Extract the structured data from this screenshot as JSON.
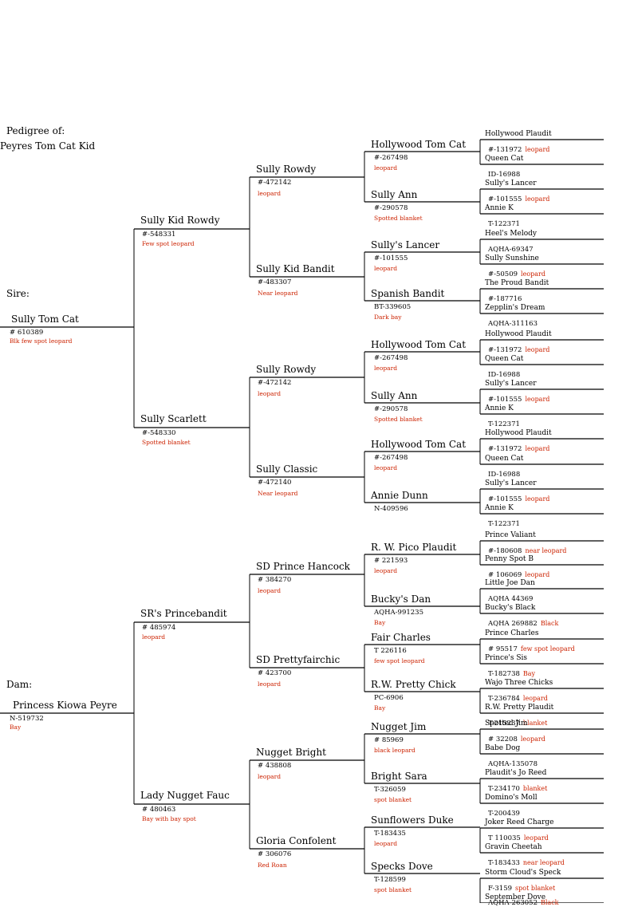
{
  "header": {
    "line1": "Pedigree of:",
    "line2": "Peyres Tom Cat Kid"
  },
  "labels": {
    "sire": "Sire:",
    "dam": "Dam:"
  },
  "g1": {
    "sire": {
      "name": "Sully Tom Cat",
      "reg": "# 610389",
      "color": "Blk few spot leopard"
    },
    "dam": {
      "name": "Princess Kiowa Peyre",
      "reg": "N-519732",
      "color": "Bay"
    }
  },
  "g2": [
    {
      "name": "Sully Kid Rowdy",
      "reg": "#-548331",
      "color": "Few spot leopard"
    },
    {
      "name": "Sully Scarlett",
      "reg": "#-548330",
      "color": "Spotted blanket"
    },
    {
      "name": "SR's Princebandit",
      "reg": "# 485974",
      "color": "leopard"
    },
    {
      "name": "Lady Nugget Fauc",
      "reg": "# 480463",
      "color": "Bay with bay spot"
    }
  ],
  "g3": [
    {
      "name": "Sully Rowdy",
      "reg": "#-472142",
      "color": "leopard"
    },
    {
      "name": "Sully Kid Bandit",
      "reg": "#-483307",
      "color": "Near leopard"
    },
    {
      "name": "Sully Rowdy",
      "reg": "#-472142",
      "color": "leopard"
    },
    {
      "name": "Sully Classic",
      "reg": "#-472140",
      "color": "Near leopard"
    },
    {
      "name": "SD Prince Hancock",
      "reg": "# 384270",
      "color": "leopard"
    },
    {
      "name": "SD Prettyfairchic",
      "reg": "# 423700",
      "color": "leopard"
    },
    {
      "name": "Nugget Bright",
      "reg": "# 438808",
      "color": "leopard"
    },
    {
      "name": "Gloria Confolent",
      "reg": "# 306076",
      "color": "Red Roan"
    }
  ],
  "g4": [
    {
      "name": "Hollywood Tom Cat",
      "reg": "#-267498",
      "color": "leopard"
    },
    {
      "name": "Sully Ann",
      "reg": "#-290578",
      "color": "Spotted blanket"
    },
    {
      "name": "Sully's Lancer",
      "reg": "#-101555",
      "color": "leopard"
    },
    {
      "name": "Spanish Bandit",
      "reg": "BT-339605",
      "color": "Dark bay"
    },
    {
      "name": "Hollywood Tom Cat",
      "reg": "#-267498",
      "color": "leopard"
    },
    {
      "name": "Sully Ann",
      "reg": "#-290578",
      "color": "Spotted blanket"
    },
    {
      "name": "Hollywood Tom Cat",
      "reg": "#-267498",
      "color": "leopard"
    },
    {
      "name": "Annie Dunn",
      "reg": "N-409596",
      "color": ""
    },
    {
      "name": "R. W. Pico Plaudit",
      "reg": "# 221593",
      "color": "leopard"
    },
    {
      "name": "Bucky's Dan",
      "reg": "AQHA-991235",
      "color": "Bay"
    },
    {
      "name": "Fair Charles",
      "reg": "T 226116",
      "color": "few spot leopard"
    },
    {
      "name": "R.W. Pretty Chick",
      "reg": "PC-6906",
      "color": "Bay"
    },
    {
      "name": "Nugget Jim",
      "reg": "# 85969",
      "color": "black leopard"
    },
    {
      "name": "Bright Sara",
      "reg": "T-326059",
      "color": "spot blanket"
    },
    {
      "name": "Sunflowers Duke",
      "reg": "T-183435",
      "color": "leopard"
    },
    {
      "name": "Specks Dove",
      "reg": "T-128599",
      "color": "spot blanket"
    }
  ],
  "g5": [
    {
      "name": "Hollywood Plaudit",
      "reg": "#-131972",
      "color": "leopard"
    },
    {
      "name": "Queen Cat",
      "reg": "ID-16988",
      "color": ""
    },
    {
      "name": "Sully's Lancer",
      "reg": "#-101555",
      "color": "leopard"
    },
    {
      "name": "Annie K",
      "reg": "T-122371",
      "color": ""
    },
    {
      "name": "Heel's Melody",
      "reg": "AQHA-69347",
      "color": ""
    },
    {
      "name": "Sully Sunshine",
      "reg": "#-50509",
      "color": "leopard"
    },
    {
      "name": "The Proud Bandit",
      "reg": "#-187716",
      "color": ""
    },
    {
      "name": "Zepplin's Dream",
      "reg": "AQHA-311163",
      "color": ""
    },
    {
      "name": "Hollywood Plaudit",
      "reg": "#-131972",
      "color": "leopard"
    },
    {
      "name": "Queen Cat",
      "reg": "ID-16988",
      "color": ""
    },
    {
      "name": "Sully's Lancer",
      "reg": "#-101555",
      "color": "leopard"
    },
    {
      "name": "Annie K",
      "reg": "T-122371",
      "color": ""
    },
    {
      "name": "Hollywood Plaudit",
      "reg": "#-131972",
      "color": "leopard"
    },
    {
      "name": "Queen Cat",
      "reg": "ID-16988",
      "color": ""
    },
    {
      "name": "Sully's Lancer",
      "reg": "#-101555",
      "color": "leopard"
    },
    {
      "name": "Annie K",
      "reg": "T-122371",
      "color": ""
    },
    {
      "name": "Prince Valiant",
      "reg": "#-180608",
      "color": "near leopard"
    },
    {
      "name": "Penny Spot B",
      "reg": "# 106069",
      "color": "leopard"
    },
    {
      "name": "Little Joe Dan",
      "reg": "AQHA 44369",
      "color": ""
    },
    {
      "name": "Bucky's Black",
      "reg": "AQHA 269882",
      "color": "Black"
    },
    {
      "name": "Prince Charles",
      "reg": "# 95517",
      "color": "few spot leopard"
    },
    {
      "name": "Prince's Sis",
      "reg": "T-182738",
      "color": "Bay"
    },
    {
      "name": "Wajo Three Chicks",
      "reg": "T-236784",
      "color": "leopard"
    },
    {
      "name": "R.W. Pretty Plaudit",
      "reg": "T-215237",
      "color": "blanket"
    },
    {
      "name": "Spotted Jim",
      "reg": "# 32208",
      "color": "leopard"
    },
    {
      "name": "Babe Dog",
      "reg": "AQHA-135078",
      "color": ""
    },
    {
      "name": "Plaudit's Jo Reed",
      "reg": "T-234170",
      "color": "blanket"
    },
    {
      "name": "Domino's Moll",
      "reg": "T-200439",
      "color": ""
    },
    {
      "name": "Joker Reed Charge",
      "reg": "T 110035",
      "color": "leopard"
    },
    {
      "name": "Gravin Cheetah",
      "reg": "T-183433",
      "color": "near leopard"
    },
    {
      "name": "Storm Cloud's Speck",
      "reg": "F-3159",
      "color": "spot blanket"
    },
    {
      "name": "September Dove",
      "reg": "AQHA-263052",
      "color": "Black"
    }
  ]
}
